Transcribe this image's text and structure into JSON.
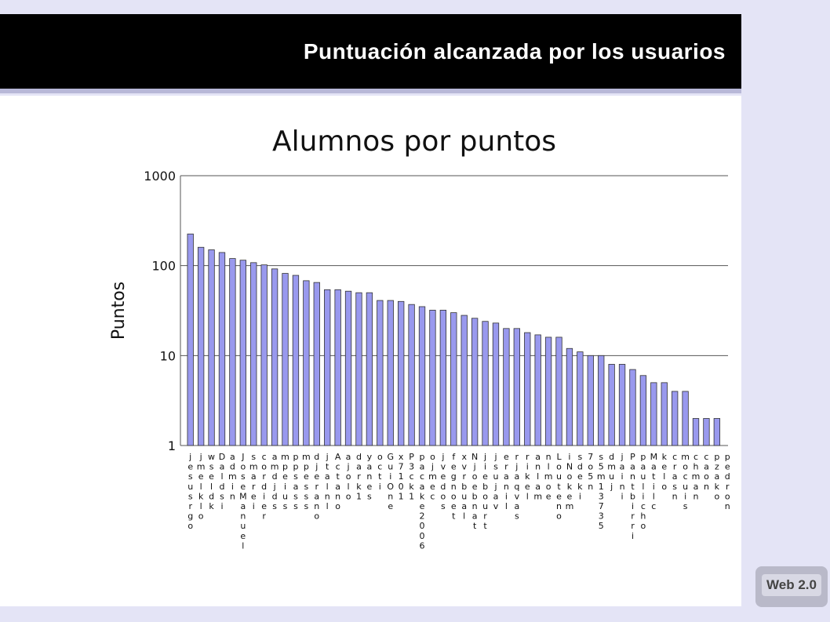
{
  "header": {
    "title": "Puntuación alcanzada por los usuarios"
  },
  "badge": "Web 2.0",
  "chart_data": {
    "type": "bar",
    "title": "Alumnos por puntos",
    "y_label": "Puntos",
    "categories": [
      "jesusrgo",
      "jmelklo",
      "wseldk",
      "Daldsi",
      "admin",
      "JoseManuel",
      "smarei",
      "cordier",
      "amdjds",
      "mpeius",
      "ppsass",
      "mpesss",
      "djerano",
      "jtalnl",
      "Actano",
      "ajolo",
      "dark1",
      "yanes",
      "octi",
      "GuiOne",
      "x7101",
      "P3ck1",
      "pacake2006",
      "ojmec",
      "jvedos",
      "fegnoet",
      "xvrbual",
      "Njoebnat",
      "jiebourt",
      "jsujav",
      "eranil",
      "rjaqvas",
      "rikel",
      "anlam",
      "nlmoe",
      "Louteno",
      "iNokem",
      "sdeki",
      "7o5n",
      "s5m13735",
      "dmuj",
      "jaini",
      "Pantbirri",
      "paulicho",
      "Matilc",
      "kelo",
      "crasn",
      "mocuis",
      "chman",
      "caon",
      "pzako",
      "pedron"
    ],
    "values": [
      225,
      160,
      150,
      140,
      120,
      115,
      108,
      102,
      92,
      82,
      78,
      68,
      65,
      54,
      54,
      52,
      50,
      50,
      41,
      41,
      40,
      37,
      35,
      32,
      32,
      30,
      28,
      26,
      24,
      23,
      20,
      20,
      18,
      17,
      16,
      16,
      12,
      11,
      10,
      10,
      8,
      8,
      7,
      6,
      5,
      5,
      4,
      4,
      2,
      2,
      2,
      1
    ],
    "color": "#9999ee",
    "ylim": [
      1,
      1000
    ],
    "yticks": [
      1,
      10,
      100,
      1000
    ],
    "log_scale": true,
    "grid": true
  }
}
